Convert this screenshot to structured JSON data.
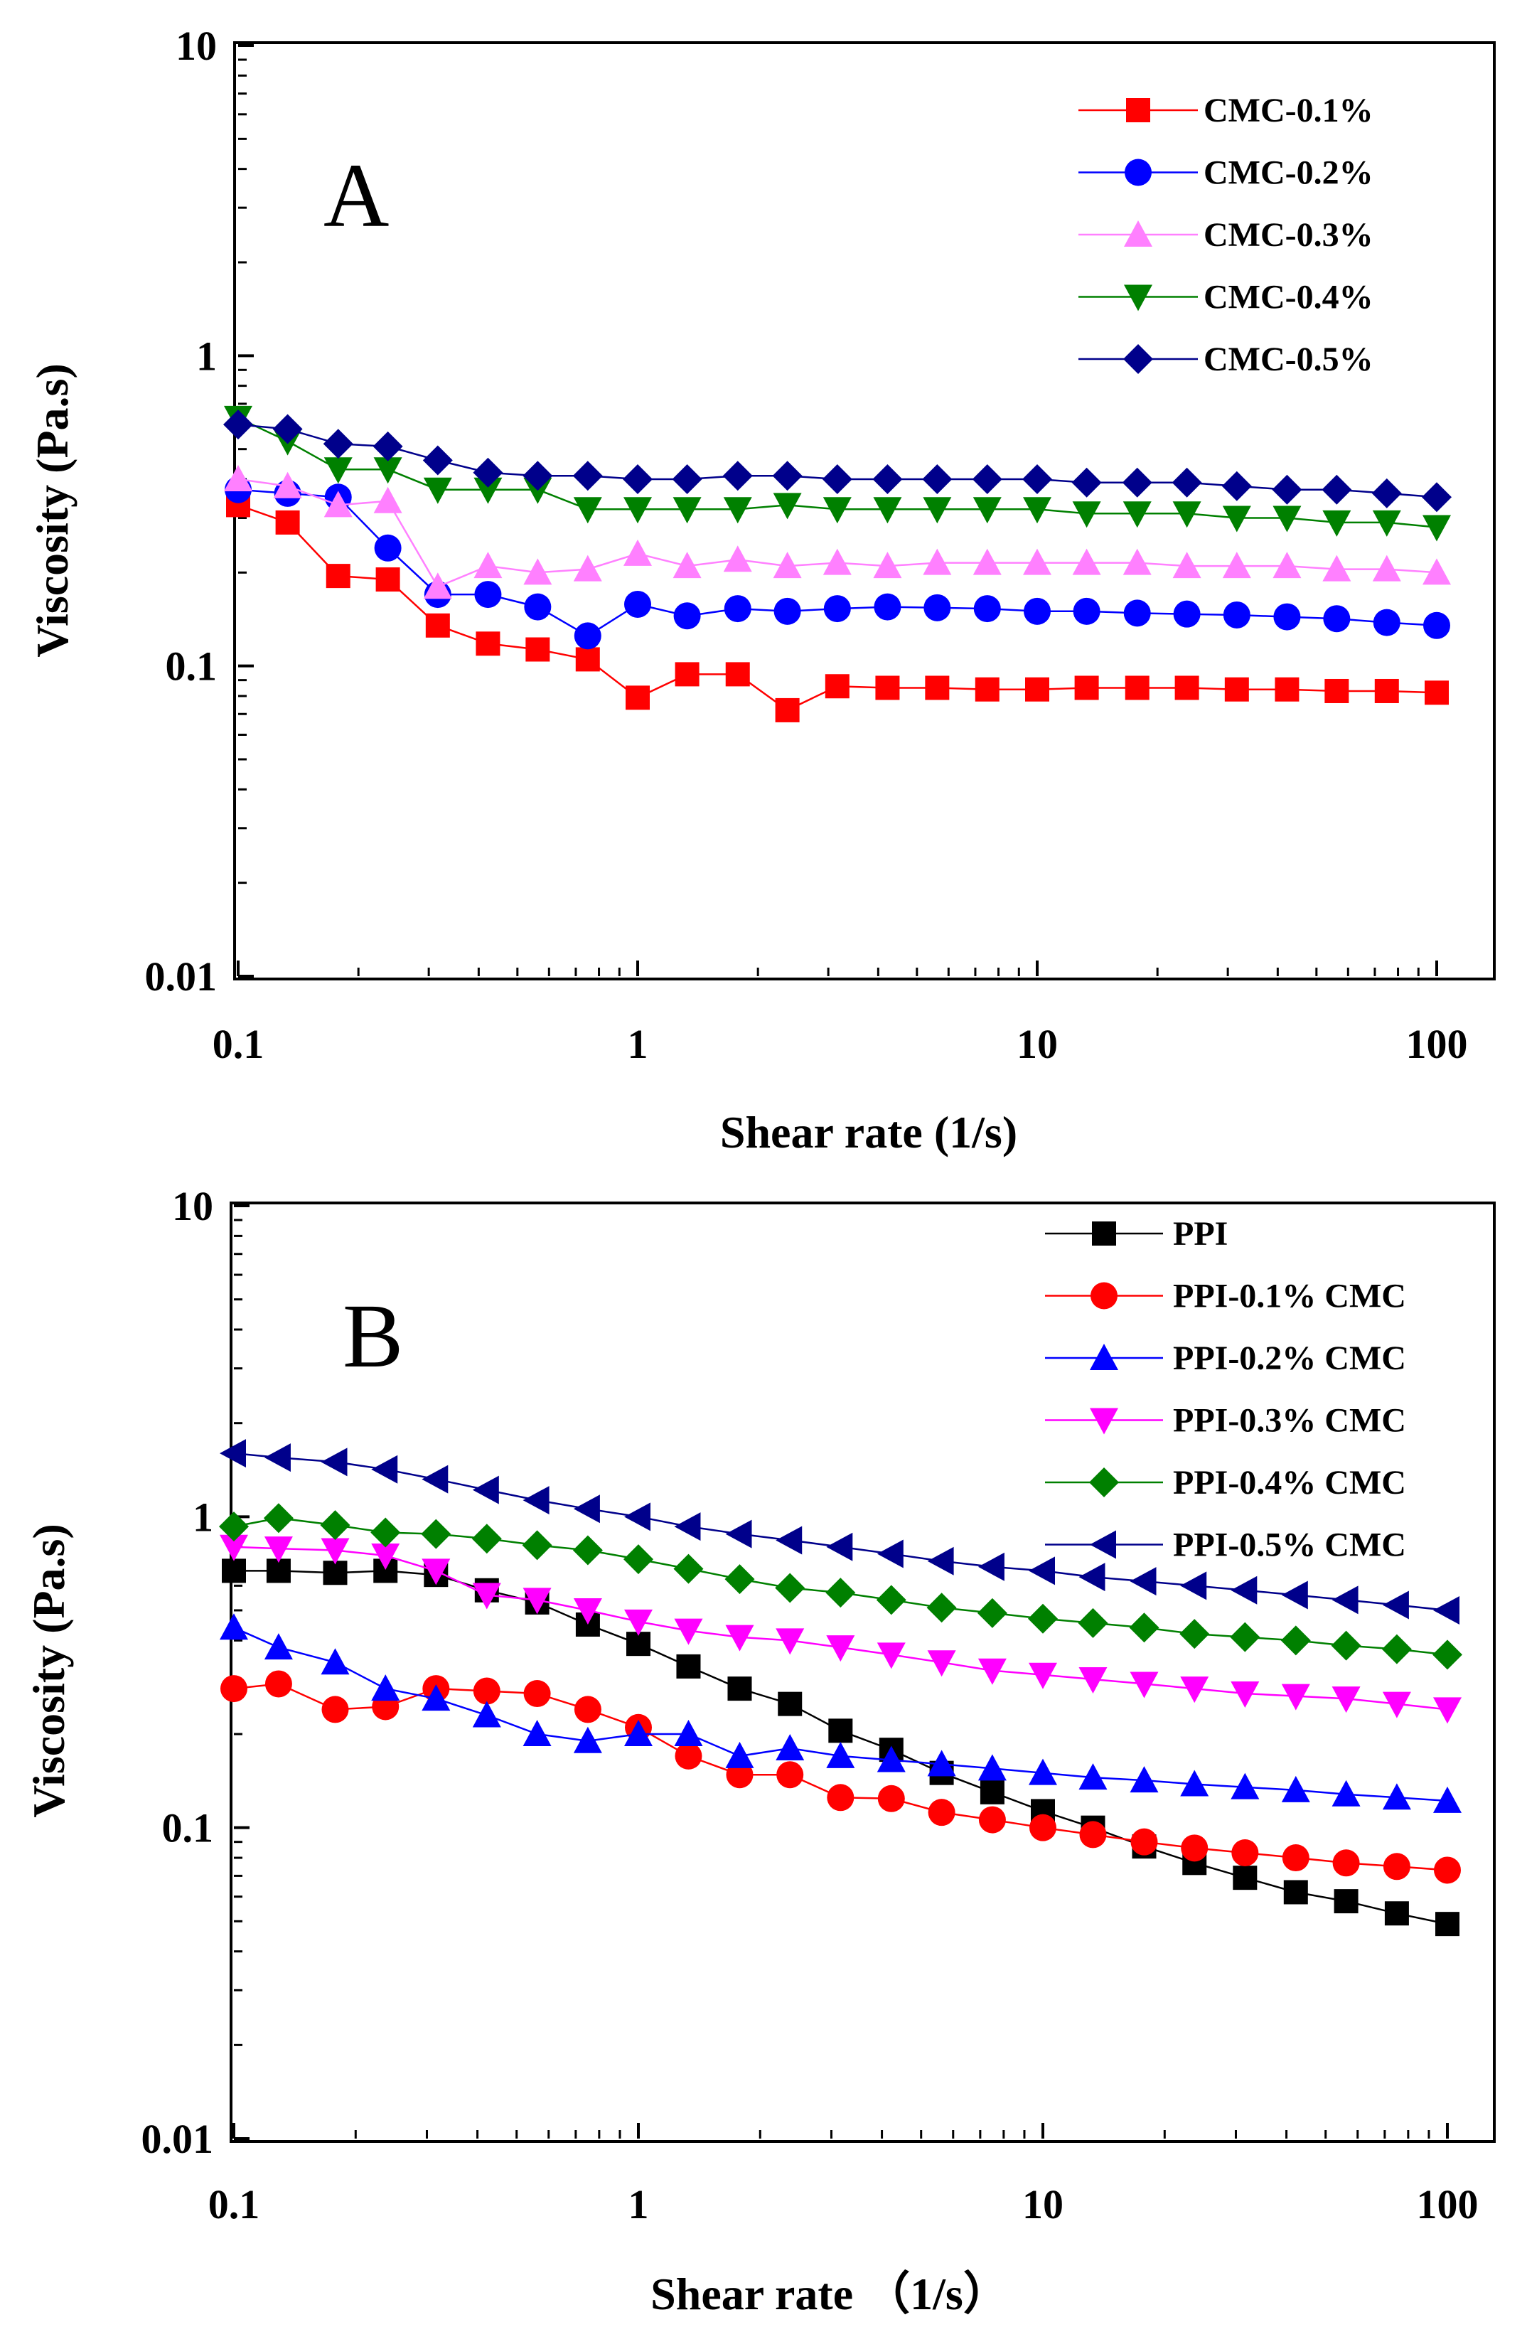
{
  "chart_data": [
    {
      "type": "line",
      "panel_label": "A",
      "xscale": "log",
      "yscale": "log",
      "xlabel": "Shear rate (1/s)",
      "ylabel": "Viscosity (Pa.s)",
      "xlim": [
        0.1,
        120
      ],
      "ylim": [
        0.01,
        10
      ],
      "xticks": [
        0.1,
        1,
        10,
        100
      ],
      "xticklabels": [
        "0.1",
        "1",
        "10",
        "100"
      ],
      "yticks": [
        0.01,
        0.1,
        1,
        10
      ],
      "yticklabels": [
        "0.01",
        "0.1",
        "1",
        "10"
      ],
      "legend_position": "top-right",
      "x": [
        0.1,
        0.133,
        0.178,
        0.237,
        0.316,
        0.422,
        0.562,
        0.75,
        1,
        1.33,
        1.78,
        2.37,
        3.16,
        4.22,
        5.62,
        7.5,
        10,
        13.3,
        17.8,
        23.7,
        31.6,
        42.2,
        56.2,
        75,
        100
      ],
      "series": [
        {
          "name": "CMC-0.1%",
          "color": "#ff0000",
          "marker": "square",
          "values": [
            0.33,
            0.29,
            0.195,
            0.19,
            0.135,
            0.118,
            0.113,
            0.105,
            0.079,
            0.094,
            0.094,
            0.072,
            0.086,
            0.085,
            0.085,
            0.084,
            0.084,
            0.085,
            0.085,
            0.085,
            0.084,
            0.084,
            0.083,
            0.083,
            0.082
          ]
        },
        {
          "name": "CMC-0.2%",
          "color": "#0000ff",
          "marker": "circle",
          "values": [
            0.37,
            0.36,
            0.35,
            0.24,
            0.17,
            0.17,
            0.155,
            0.125,
            0.158,
            0.145,
            0.153,
            0.15,
            0.153,
            0.155,
            0.154,
            0.153,
            0.15,
            0.15,
            0.148,
            0.147,
            0.146,
            0.144,
            0.142,
            0.138,
            0.135
          ]
        },
        {
          "name": "CMC-0.3%",
          "color": "#ff80ff",
          "marker": "triangle-up",
          "values": [
            0.4,
            0.38,
            0.33,
            0.34,
            0.18,
            0.21,
            0.2,
            0.205,
            0.23,
            0.21,
            0.22,
            0.21,
            0.215,
            0.21,
            0.215,
            0.215,
            0.215,
            0.215,
            0.215,
            0.21,
            0.21,
            0.21,
            0.205,
            0.205,
            0.2
          ]
        },
        {
          "name": "CMC-0.4%",
          "color": "#008000",
          "marker": "triangle-down",
          "values": [
            0.63,
            0.53,
            0.43,
            0.43,
            0.37,
            0.37,
            0.37,
            0.32,
            0.32,
            0.32,
            0.32,
            0.33,
            0.32,
            0.32,
            0.32,
            0.32,
            0.32,
            0.31,
            0.31,
            0.31,
            0.3,
            0.3,
            0.29,
            0.29,
            0.28
          ]
        },
        {
          "name": "CMC-0.5%",
          "color": "#00008b",
          "marker": "diamond",
          "values": [
            0.6,
            0.58,
            0.52,
            0.51,
            0.46,
            0.42,
            0.41,
            0.41,
            0.4,
            0.4,
            0.41,
            0.41,
            0.4,
            0.4,
            0.4,
            0.4,
            0.4,
            0.39,
            0.39,
            0.39,
            0.38,
            0.37,
            0.37,
            0.36,
            0.35
          ]
        }
      ]
    },
    {
      "type": "line",
      "panel_label": "B",
      "xscale": "log",
      "yscale": "log",
      "xlabel": "Shear rate （1/s）",
      "ylabel": "Viscosity (Pa.s)",
      "xlim": [
        0.1,
        120
      ],
      "ylim": [
        0.01,
        10
      ],
      "xticks": [
        0.1,
        1,
        10,
        100
      ],
      "xticklabels": [
        "0.1",
        "1",
        "10",
        "100"
      ],
      "yticks": [
        0.01,
        0.1,
        1,
        10
      ],
      "yticklabels": [
        "0.01",
        "0.1",
        "1",
        "10"
      ],
      "legend_position": "top-right",
      "x": [
        0.1,
        0.129,
        0.178,
        0.237,
        0.316,
        0.422,
        0.562,
        0.75,
        1,
        1.33,
        1.78,
        2.37,
        3.16,
        4.22,
        5.62,
        7.5,
        10,
        13.3,
        17.8,
        23.7,
        31.6,
        42.2,
        56.2,
        75,
        100
      ],
      "series": [
        {
          "name": "PPI",
          "color": "#000000",
          "marker": "square",
          "values": [
            0.67,
            0.67,
            0.66,
            0.67,
            0.65,
            0.58,
            0.53,
            0.45,
            0.39,
            0.33,
            0.28,
            0.25,
            0.205,
            0.178,
            0.15,
            0.13,
            0.113,
            0.1,
            0.087,
            0.077,
            0.069,
            0.062,
            0.058,
            0.053,
            0.049
          ]
        },
        {
          "name": "PPI-0.1% CMC",
          "color": "#ff0000",
          "marker": "circle",
          "values": [
            0.28,
            0.29,
            0.24,
            0.245,
            0.28,
            0.275,
            0.27,
            0.24,
            0.21,
            0.17,
            0.148,
            0.148,
            0.125,
            0.124,
            0.112,
            0.106,
            0.1,
            0.095,
            0.09,
            0.086,
            0.083,
            0.08,
            0.077,
            0.075,
            0.073
          ]
        },
        {
          "name": "PPI-0.2% CMC",
          "color": "#0000ff",
          "marker": "triangle-up",
          "values": [
            0.44,
            0.38,
            0.34,
            0.28,
            0.26,
            0.23,
            0.2,
            0.19,
            0.2,
            0.2,
            0.17,
            0.18,
            0.17,
            0.165,
            0.16,
            0.155,
            0.15,
            0.145,
            0.142,
            0.138,
            0.135,
            0.132,
            0.128,
            0.125,
            0.122
          ]
        },
        {
          "name": "PPI-0.3% CMC",
          "color": "#ff00ff",
          "marker": "triangle-down",
          "values": [
            0.8,
            0.79,
            0.78,
            0.75,
            0.67,
            0.56,
            0.54,
            0.5,
            0.46,
            0.43,
            0.41,
            0.4,
            0.38,
            0.36,
            0.34,
            0.32,
            0.31,
            0.3,
            0.29,
            0.28,
            0.27,
            0.265,
            0.26,
            0.25,
            0.24
          ]
        },
        {
          "name": "PPI-0.4% CMC",
          "color": "#008000",
          "marker": "diamond",
          "values": [
            0.93,
            0.99,
            0.94,
            0.89,
            0.88,
            0.85,
            0.81,
            0.78,
            0.73,
            0.68,
            0.63,
            0.59,
            0.57,
            0.54,
            0.51,
            0.49,
            0.47,
            0.455,
            0.44,
            0.42,
            0.41,
            0.4,
            0.385,
            0.375,
            0.36
          ]
        },
        {
          "name": "PPI-0.5% CMC",
          "color": "#00008b",
          "marker": "triangle-left",
          "values": [
            1.6,
            1.55,
            1.5,
            1.42,
            1.32,
            1.22,
            1.13,
            1.06,
            1.0,
            0.93,
            0.88,
            0.84,
            0.8,
            0.76,
            0.72,
            0.69,
            0.67,
            0.64,
            0.62,
            0.6,
            0.58,
            0.56,
            0.54,
            0.52,
            0.5
          ]
        }
      ]
    }
  ]
}
